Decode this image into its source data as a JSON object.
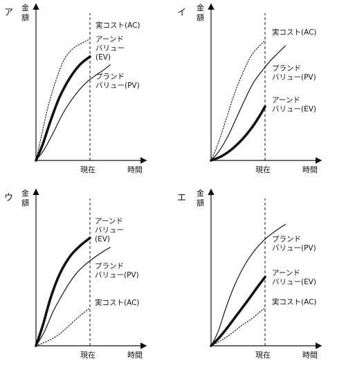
{
  "chart_data": [
    {
      "type": "line",
      "panel_label": "ア",
      "ylabel": "金額",
      "xlabel": "時間",
      "now_label": "現在",
      "series": [
        {
          "key": "ac",
          "label_lines": [
            "実コスト(AC)"
          ],
          "style": "dotted",
          "points": [
            [
              0,
              0
            ],
            [
              0.08,
              0.18
            ],
            [
              0.18,
              0.4
            ],
            [
              0.3,
              0.6
            ],
            [
              0.42,
              0.75
            ],
            [
              0.55,
              0.83
            ],
            [
              0.68,
              0.87
            ],
            [
              0.8,
              0.9
            ]
          ]
        },
        {
          "key": "ev",
          "label_lines": [
            "アーンド",
            "バリュー",
            "(EV)"
          ],
          "style": "bold",
          "points": [
            [
              0,
              0
            ],
            [
              0.1,
              0.12
            ],
            [
              0.22,
              0.3
            ],
            [
              0.35,
              0.47
            ],
            [
              0.5,
              0.61
            ],
            [
              0.65,
              0.71
            ],
            [
              0.8,
              0.77
            ]
          ]
        },
        {
          "key": "pv",
          "label_lines": [
            "プランド",
            "バリュー(PV)"
          ],
          "style": "thin",
          "points": [
            [
              0,
              0
            ],
            [
              0.12,
              0.08
            ],
            [
              0.25,
              0.2
            ],
            [
              0.38,
              0.33
            ],
            [
              0.5,
              0.43
            ],
            [
              0.62,
              0.51
            ],
            [
              0.75,
              0.58
            ],
            [
              0.88,
              0.63
            ],
            [
              1.0,
              0.67
            ],
            [
              1.1,
              0.71
            ]
          ]
        }
      ]
    },
    {
      "type": "line",
      "panel_label": "イ",
      "ylabel": "金額",
      "xlabel": "時間",
      "now_label": "現在",
      "series": [
        {
          "key": "ac",
          "label_lines": [
            "実コスト(AC)"
          ],
          "style": "dotted",
          "points": [
            [
              0,
              0
            ],
            [
              0.1,
              0.12
            ],
            [
              0.22,
              0.3
            ],
            [
              0.35,
              0.5
            ],
            [
              0.48,
              0.66
            ],
            [
              0.6,
              0.78
            ],
            [
              0.72,
              0.85
            ],
            [
              0.8,
              0.89
            ]
          ]
        },
        {
          "key": "pv",
          "label_lines": [
            "プランド",
            "バリュー(PV)"
          ],
          "style": "thin",
          "points": [
            [
              0,
              0
            ],
            [
              0.12,
              0.07
            ],
            [
              0.25,
              0.18
            ],
            [
              0.38,
              0.32
            ],
            [
              0.5,
              0.45
            ],
            [
              0.62,
              0.57
            ],
            [
              0.75,
              0.66
            ],
            [
              0.88,
              0.74
            ],
            [
              1.0,
              0.8
            ],
            [
              1.1,
              0.85
            ]
          ]
        },
        {
          "key": "ev",
          "label_lines": [
            "アーンド",
            "バリュー(EV)"
          ],
          "style": "bold",
          "points": [
            [
              0,
              0
            ],
            [
              0.15,
              0.03
            ],
            [
              0.3,
              0.08
            ],
            [
              0.45,
              0.15
            ],
            [
              0.6,
              0.24
            ],
            [
              0.72,
              0.33
            ],
            [
              0.8,
              0.4
            ]
          ]
        }
      ]
    },
    {
      "type": "line",
      "panel_label": "ウ",
      "ylabel": "金額",
      "xlabel": "時間",
      "now_label": "現在",
      "series": [
        {
          "key": "ev",
          "label_lines": [
            "アーンド",
            "バリュー",
            "(EV)"
          ],
          "style": "bold",
          "points": [
            [
              0,
              0
            ],
            [
              0.1,
              0.15
            ],
            [
              0.22,
              0.36
            ],
            [
              0.35,
              0.53
            ],
            [
              0.5,
              0.66
            ],
            [
              0.65,
              0.74
            ],
            [
              0.8,
              0.8
            ]
          ]
        },
        {
          "key": "pv",
          "label_lines": [
            "プランド",
            "バリュー(PV)"
          ],
          "style": "thin",
          "points": [
            [
              0,
              0
            ],
            [
              0.12,
              0.1
            ],
            [
              0.25,
              0.25
            ],
            [
              0.38,
              0.37
            ],
            [
              0.5,
              0.47
            ],
            [
              0.62,
              0.55
            ],
            [
              0.75,
              0.61
            ],
            [
              0.88,
              0.66
            ],
            [
              1.0,
              0.7
            ],
            [
              1.1,
              0.73
            ]
          ]
        },
        {
          "key": "ac",
          "label_lines": [
            "実コスト(AC)"
          ],
          "style": "dotted",
          "points": [
            [
              0,
              0
            ],
            [
              0.15,
              0.03
            ],
            [
              0.3,
              0.07
            ],
            [
              0.45,
              0.13
            ],
            [
              0.6,
              0.2
            ],
            [
              0.72,
              0.25
            ],
            [
              0.8,
              0.28
            ]
          ]
        }
      ]
    },
    {
      "type": "line",
      "panel_label": "エ",
      "ylabel": "金額",
      "xlabel": "時間",
      "now_label": "現在",
      "series": [
        {
          "key": "pv",
          "label_lines": [
            "プランド",
            "バリュー(PV)"
          ],
          "style": "thin",
          "points": [
            [
              0,
              0
            ],
            [
              0.1,
              0.1
            ],
            [
              0.22,
              0.28
            ],
            [
              0.35,
              0.45
            ],
            [
              0.5,
              0.6
            ],
            [
              0.65,
              0.71
            ],
            [
              0.8,
              0.79
            ],
            [
              0.95,
              0.85
            ],
            [
              1.1,
              0.9
            ]
          ]
        },
        {
          "key": "ev",
          "label_lines": [
            "アーンド",
            "バリュー(EV)"
          ],
          "style": "bold",
          "points": [
            [
              0,
              0
            ],
            [
              0.12,
              0.06
            ],
            [
              0.25,
              0.14
            ],
            [
              0.4,
              0.24
            ],
            [
              0.55,
              0.34
            ],
            [
              0.68,
              0.43
            ],
            [
              0.8,
              0.51
            ]
          ]
        },
        {
          "key": "ac",
          "label_lines": [
            "実コスト(AC)"
          ],
          "style": "dotted",
          "points": [
            [
              0,
              0
            ],
            [
              0.15,
              0.04
            ],
            [
              0.3,
              0.09
            ],
            [
              0.45,
              0.15
            ],
            [
              0.6,
              0.2
            ],
            [
              0.72,
              0.25
            ],
            [
              0.8,
              0.28
            ]
          ]
        }
      ]
    }
  ]
}
